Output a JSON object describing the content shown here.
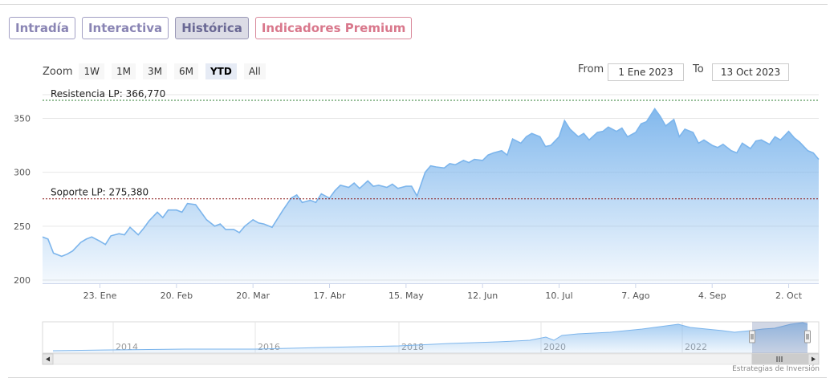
{
  "tabs": [
    {
      "label": "Intradía",
      "active": false
    },
    {
      "label": "Interactiva",
      "active": false
    },
    {
      "label": "Histórica",
      "active": true
    },
    {
      "label": "Indicadores Premium",
      "active": false
    }
  ],
  "zoom": {
    "label": "Zoom",
    "buttons": [
      "1W",
      "1M",
      "3M",
      "6M",
      "YTD",
      "All"
    ],
    "selected": "YTD"
  },
  "range": {
    "from_label": "From",
    "from_value": "1 Ene 2023",
    "to_label": "To",
    "to_value": "13 Oct 2023"
  },
  "credit": "Estrategias de Inversión",
  "colors": {
    "line": "#7cb5ec",
    "resistance": "#2e7d32",
    "support": "#8b1a1a"
  },
  "chart_data": {
    "type": "area",
    "x_start": "2023-01-02",
    "x_end": "2023-10-13",
    "ylim": [
      197,
      372
    ],
    "yticks": [
      200,
      250,
      300,
      350
    ],
    "xticks": [
      {
        "date": "2023-01-23",
        "label": "23. Ene"
      },
      {
        "date": "2023-02-20",
        "label": "20. Feb"
      },
      {
        "date": "2023-03-20",
        "label": "20. Mar"
      },
      {
        "date": "2023-04-17",
        "label": "17. Abr"
      },
      {
        "date": "2023-05-15",
        "label": "15. May"
      },
      {
        "date": "2023-06-12",
        "label": "12. Jun"
      },
      {
        "date": "2023-07-10",
        "label": "10. Jul"
      },
      {
        "date": "2023-08-07",
        "label": "7. Ago"
      },
      {
        "date": "2023-09-04",
        "label": "4. Sep"
      },
      {
        "date": "2023-10-02",
        "label": "2. Oct"
      }
    ],
    "plot_lines": [
      {
        "label": "Resistencia LP: 366,770",
        "value": 366.77
      },
      {
        "label": "Soporte LP: 275,380",
        "value": 275.38
      }
    ],
    "series": [
      {
        "values": [
          [
            "2023-01-02",
            240
          ],
          [
            "2023-01-04",
            238
          ],
          [
            "2023-01-06",
            225
          ],
          [
            "2023-01-09",
            222
          ],
          [
            "2023-01-11",
            224
          ],
          [
            "2023-01-13",
            227
          ],
          [
            "2023-01-16",
            235
          ],
          [
            "2023-01-18",
            238
          ],
          [
            "2023-01-20",
            240
          ],
          [
            "2023-01-23",
            236
          ],
          [
            "2023-01-25",
            233
          ],
          [
            "2023-01-27",
            241
          ],
          [
            "2023-01-30",
            243
          ],
          [
            "2023-02-01",
            242
          ],
          [
            "2023-02-03",
            249
          ],
          [
            "2023-02-06",
            242
          ],
          [
            "2023-02-08",
            248
          ],
          [
            "2023-02-10",
            255
          ],
          [
            "2023-02-13",
            263
          ],
          [
            "2023-02-15",
            258
          ],
          [
            "2023-02-17",
            265
          ],
          [
            "2023-02-20",
            265
          ],
          [
            "2023-02-22",
            263
          ],
          [
            "2023-02-24",
            271
          ],
          [
            "2023-02-27",
            270
          ],
          [
            "2023-03-01",
            263
          ],
          [
            "2023-03-03",
            256
          ],
          [
            "2023-03-06",
            250
          ],
          [
            "2023-03-08",
            252
          ],
          [
            "2023-03-10",
            247
          ],
          [
            "2023-03-13",
            247
          ],
          [
            "2023-03-15",
            244
          ],
          [
            "2023-03-17",
            250
          ],
          [
            "2023-03-20",
            256
          ],
          [
            "2023-03-22",
            253
          ],
          [
            "2023-03-24",
            252
          ],
          [
            "2023-03-27",
            249
          ],
          [
            "2023-03-29",
            257
          ],
          [
            "2023-03-31",
            265
          ],
          [
            "2023-04-03",
            276
          ],
          [
            "2023-04-05",
            279
          ],
          [
            "2023-04-07",
            272
          ],
          [
            "2023-04-10",
            274
          ],
          [
            "2023-04-12",
            272
          ],
          [
            "2023-04-14",
            280
          ],
          [
            "2023-04-17",
            276
          ],
          [
            "2023-04-19",
            283
          ],
          [
            "2023-04-21",
            288
          ],
          [
            "2023-04-24",
            286
          ],
          [
            "2023-04-26",
            290
          ],
          [
            "2023-04-28",
            285
          ],
          [
            "2023-05-01",
            292
          ],
          [
            "2023-05-03",
            287
          ],
          [
            "2023-05-05",
            288
          ],
          [
            "2023-05-08",
            286
          ],
          [
            "2023-05-10",
            289
          ],
          [
            "2023-05-12",
            285
          ],
          [
            "2023-05-15",
            287
          ],
          [
            "2023-05-17",
            287
          ],
          [
            "2023-05-19",
            278
          ],
          [
            "2023-05-22",
            300
          ],
          [
            "2023-05-24",
            306
          ],
          [
            "2023-05-26",
            305
          ],
          [
            "2023-05-29",
            304
          ],
          [
            "2023-05-31",
            308
          ],
          [
            "2023-06-02",
            307
          ],
          [
            "2023-06-05",
            311
          ],
          [
            "2023-06-07",
            309
          ],
          [
            "2023-06-09",
            312
          ],
          [
            "2023-06-12",
            311
          ],
          [
            "2023-06-14",
            316
          ],
          [
            "2023-06-16",
            318
          ],
          [
            "2023-06-19",
            320
          ],
          [
            "2023-06-21",
            316
          ],
          [
            "2023-06-23",
            331
          ],
          [
            "2023-06-26",
            327
          ],
          [
            "2023-06-28",
            333
          ],
          [
            "2023-06-30",
            336
          ],
          [
            "2023-07-03",
            333
          ],
          [
            "2023-07-05",
            324
          ],
          [
            "2023-07-07",
            325
          ],
          [
            "2023-07-10",
            333
          ],
          [
            "2023-07-12",
            348
          ],
          [
            "2023-07-14",
            340
          ],
          [
            "2023-07-17",
            333
          ],
          [
            "2023-07-19",
            336
          ],
          [
            "2023-07-21",
            330
          ],
          [
            "2023-07-24",
            337
          ],
          [
            "2023-07-26",
            338
          ],
          [
            "2023-07-28",
            342
          ],
          [
            "2023-07-31",
            338
          ],
          [
            "2023-08-02",
            341
          ],
          [
            "2023-08-04",
            333
          ],
          [
            "2023-08-07",
            337
          ],
          [
            "2023-08-09",
            345
          ],
          [
            "2023-08-11",
            347
          ],
          [
            "2023-08-14",
            359
          ],
          [
            "2023-08-16",
            352
          ],
          [
            "2023-08-18",
            343
          ],
          [
            "2023-08-21",
            349
          ],
          [
            "2023-08-23",
            333
          ],
          [
            "2023-08-25",
            340
          ],
          [
            "2023-08-28",
            337
          ],
          [
            "2023-08-30",
            327
          ],
          [
            "2023-09-01",
            330
          ],
          [
            "2023-09-04",
            325
          ],
          [
            "2023-09-06",
            323
          ],
          [
            "2023-09-08",
            326
          ],
          [
            "2023-09-11",
            320
          ],
          [
            "2023-09-13",
            318
          ],
          [
            "2023-09-15",
            327
          ],
          [
            "2023-09-18",
            322
          ],
          [
            "2023-09-20",
            329
          ],
          [
            "2023-09-22",
            330
          ],
          [
            "2023-09-25",
            326
          ],
          [
            "2023-09-27",
            333
          ],
          [
            "2023-09-29",
            330
          ],
          [
            "2023-10-02",
            338
          ],
          [
            "2023-10-04",
            332
          ],
          [
            "2023-10-06",
            328
          ],
          [
            "2023-10-09",
            320
          ],
          [
            "2023-10-11",
            318
          ],
          [
            "2023-10-13",
            312
          ]
        ]
      }
    ],
    "navigator": {
      "x_labels": [
        "2014",
        "2016",
        "2018",
        "2020",
        "2022"
      ]
    }
  }
}
